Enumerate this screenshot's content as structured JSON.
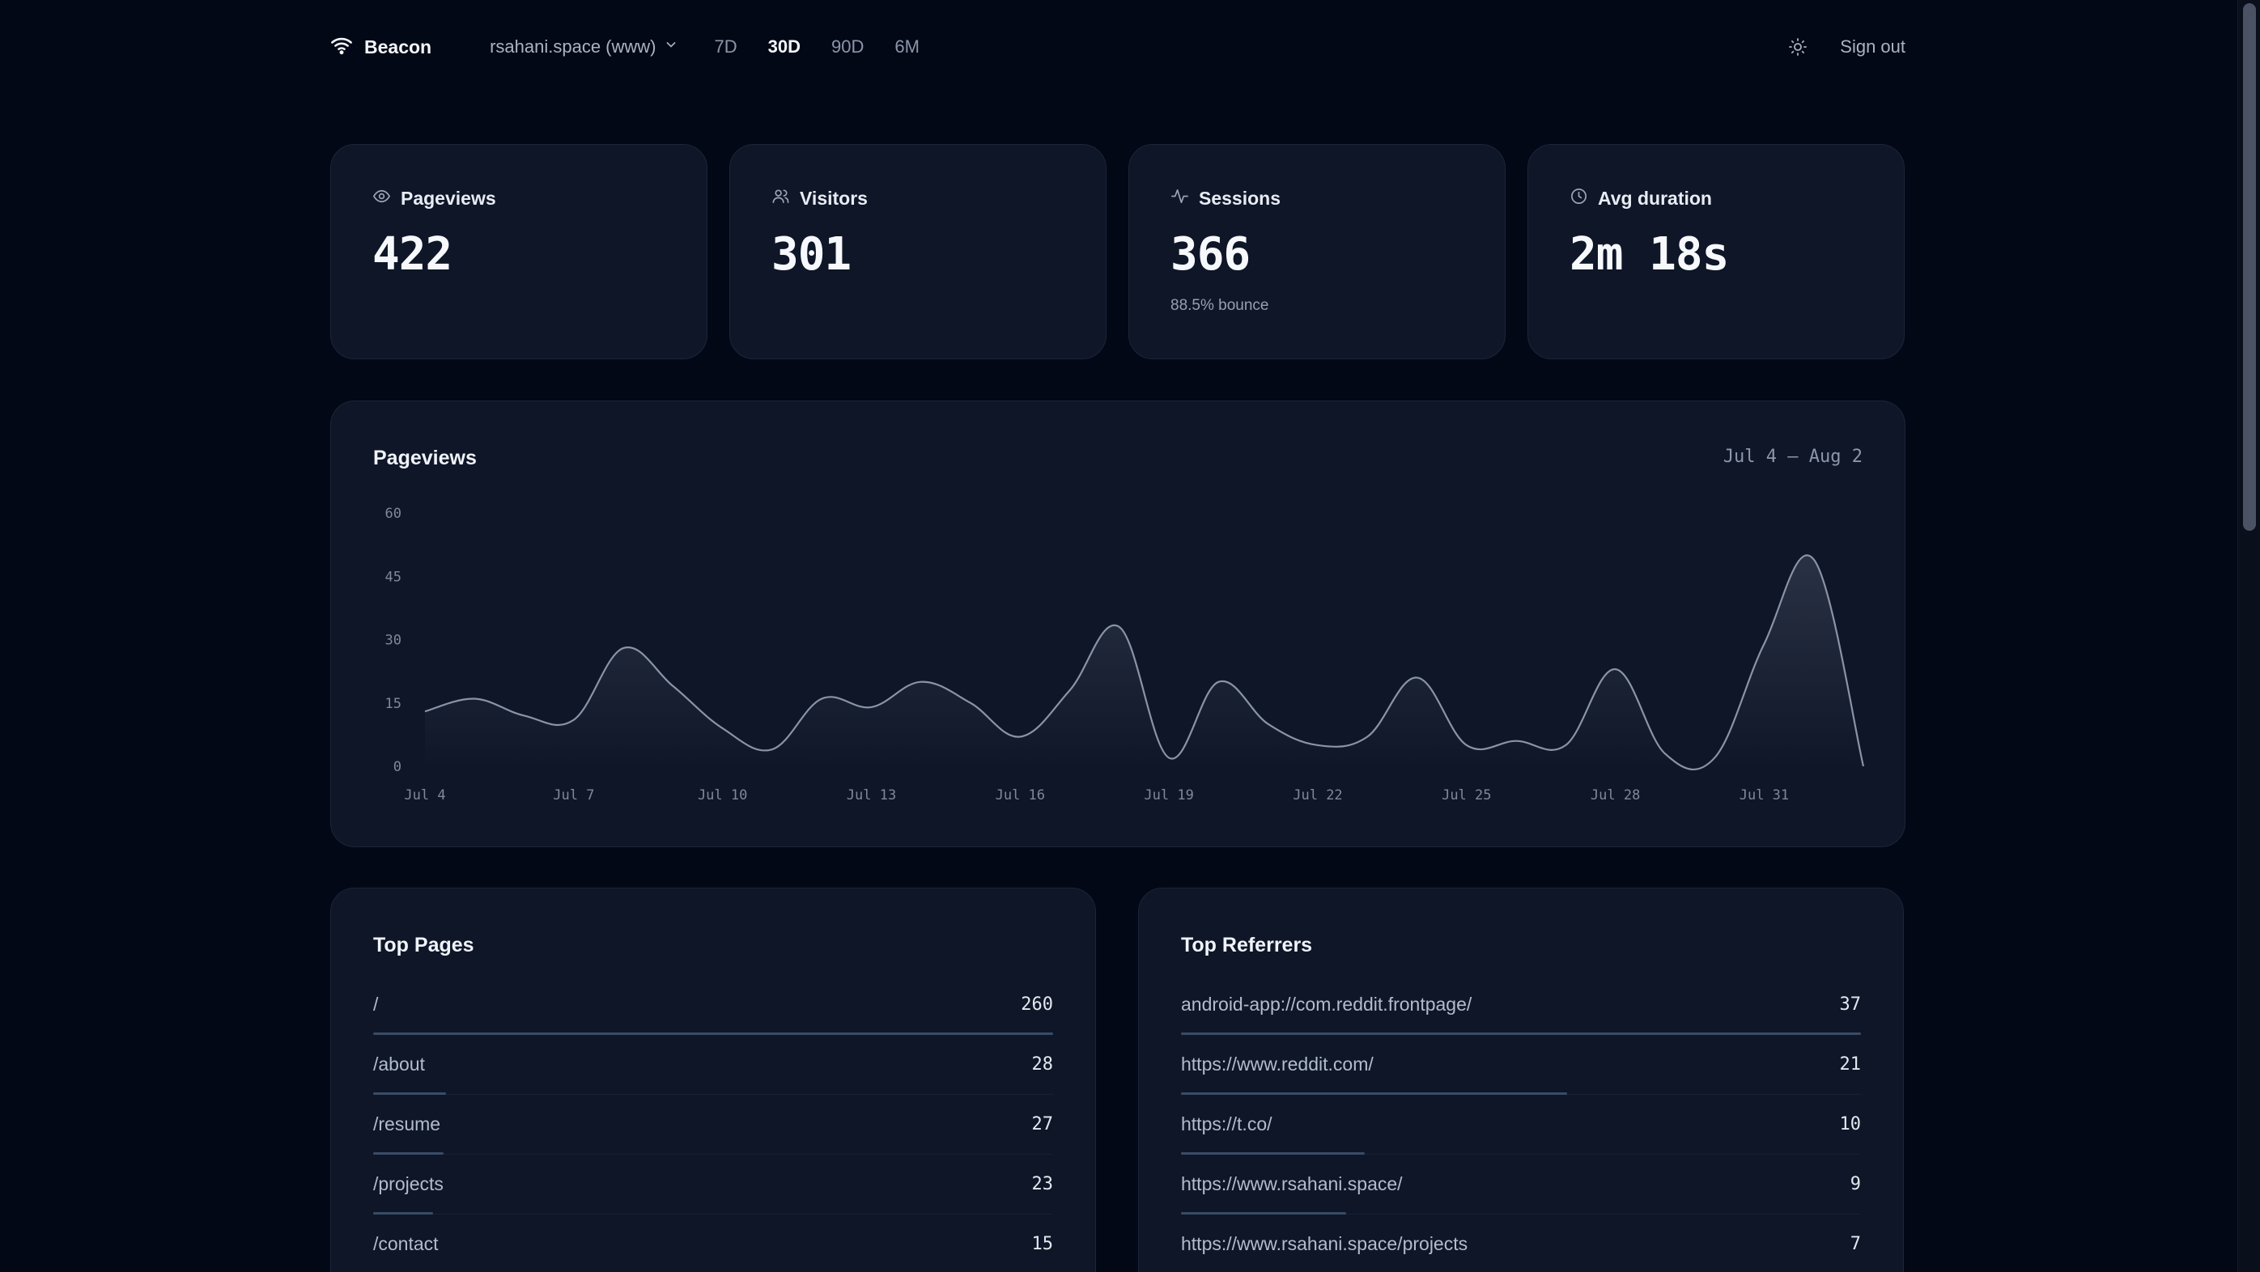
{
  "header": {
    "brand": "Beacon",
    "site": "rsahani.space (www)",
    "ranges": [
      "7D",
      "30D",
      "90D",
      "6M"
    ],
    "active_range": "30D",
    "signout": "Sign out"
  },
  "stats": [
    {
      "label": "Pageviews",
      "value": "422",
      "sub": "",
      "icon": "eye-icon"
    },
    {
      "label": "Visitors",
      "value": "301",
      "sub": "",
      "icon": "users-icon"
    },
    {
      "label": "Sessions",
      "value": "366",
      "sub": "88.5% bounce",
      "icon": "activity-icon"
    },
    {
      "label": "Avg duration",
      "value": "2m 18s",
      "sub": "",
      "icon": "clock-icon"
    }
  ],
  "chart": {
    "title": "Pageviews",
    "range_label": "Jul 4 – Aug 2"
  },
  "chart_data": {
    "type": "area",
    "x": [
      "Jul 4",
      "Jul 5",
      "Jul 6",
      "Jul 7",
      "Jul 8",
      "Jul 9",
      "Jul 10",
      "Jul 11",
      "Jul 12",
      "Jul 13",
      "Jul 14",
      "Jul 15",
      "Jul 16",
      "Jul 17",
      "Jul 18",
      "Jul 19",
      "Jul 20",
      "Jul 21",
      "Jul 22",
      "Jul 23",
      "Jul 24",
      "Jul 25",
      "Jul 26",
      "Jul 27",
      "Jul 28",
      "Jul 29",
      "Jul 30",
      "Jul 31",
      "Aug 1",
      "Aug 2"
    ],
    "values": [
      13,
      16,
      12,
      11,
      28,
      19,
      9,
      4,
      16,
      14,
      20,
      15,
      7,
      18,
      33,
      2,
      20,
      10,
      5,
      7,
      21,
      5,
      6,
      5,
      23,
      3,
      2,
      29,
      49,
      0
    ],
    "xticks": [
      "Jul 4",
      "Jul 7",
      "Jul 10",
      "Jul 13",
      "Jul 16",
      "Jul 19",
      "Jul 22",
      "Jul 25",
      "Jul 28",
      "Jul 31"
    ],
    "yticks": [
      0,
      15,
      30,
      45,
      60
    ],
    "ylim": [
      0,
      60
    ],
    "grid": false,
    "color": "#8a94a6"
  },
  "top_pages": {
    "title": "Top Pages",
    "rows": [
      {
        "label": "/",
        "count": "260",
        "value": 260
      },
      {
        "label": "/about",
        "count": "28",
        "value": 28
      },
      {
        "label": "/resume",
        "count": "27",
        "value": 27
      },
      {
        "label": "/projects",
        "count": "23",
        "value": 23
      },
      {
        "label": "/contact",
        "count": "15",
        "value": 15
      }
    ]
  },
  "top_referrers": {
    "title": "Top Referrers",
    "rows": [
      {
        "label": "android-app://com.reddit.frontpage/",
        "count": "37",
        "value": 37
      },
      {
        "label": "https://www.reddit.com/",
        "count": "21",
        "value": 21
      },
      {
        "label": "https://t.co/",
        "count": "10",
        "value": 10
      },
      {
        "label": "https://www.rsahani.space/",
        "count": "9",
        "value": 9
      },
      {
        "label": "https://www.rsahani.space/projects",
        "count": "7",
        "value": 7
      }
    ]
  }
}
